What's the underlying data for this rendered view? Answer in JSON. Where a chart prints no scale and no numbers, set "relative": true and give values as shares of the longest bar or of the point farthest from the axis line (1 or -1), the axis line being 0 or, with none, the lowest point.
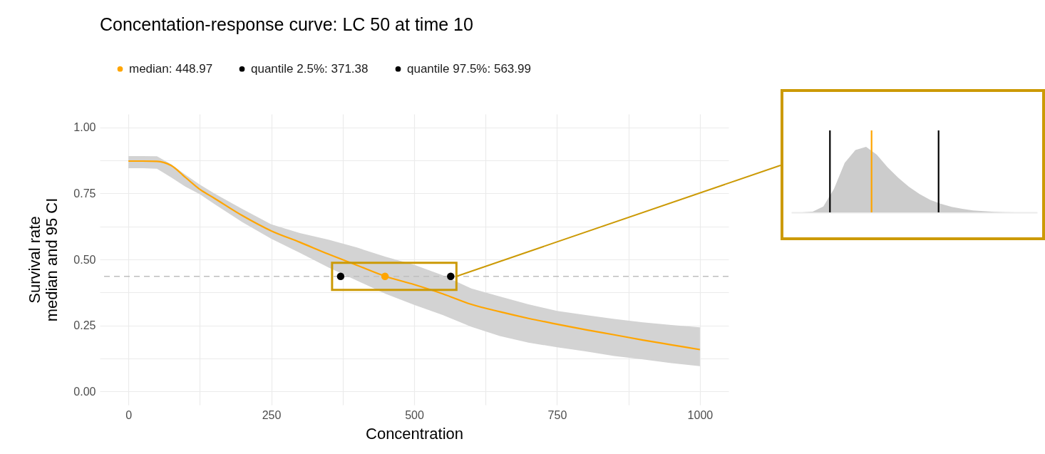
{
  "chart_data": [
    {
      "type": "line",
      "title": "Concentation-response curve: LC 50  at time 10",
      "xlabel": "Concentration",
      "ylabel": "Survival rate\nmedian and 95 CI",
      "xlim": [
        -50,
        1050
      ],
      "ylim": [
        -0.05,
        1.05
      ],
      "xticks": [
        0,
        {
          "value": 125,
          "label": null
        },
        250,
        {
          "value": 375,
          "label": null
        },
        500,
        {
          "value": 625,
          "label": null
        },
        750,
        {
          "value": 875,
          "label": null
        },
        1000
      ],
      "yticks": [
        {
          "value": 0,
          "label": "0.00"
        },
        {
          "value": 0.125,
          "label": null
        },
        {
          "value": 0.25,
          "label": "0.25"
        },
        {
          "value": 0.375,
          "label": null
        },
        {
          "value": 0.5,
          "label": "0.50"
        },
        {
          "value": 0.625,
          "label": null
        },
        {
          "value": 0.75,
          "label": "0.75"
        },
        {
          "value": 0.875,
          "label": null
        },
        {
          "value": 1,
          "label": "1.00"
        }
      ],
      "grid": true,
      "legend": "top",
      "ref_lines": [
        {
          "axis": "y",
          "value": 0.436,
          "color": "#bebebe",
          "line_style": "dashed"
        }
      ],
      "series": [
        {
          "type": "line",
          "color": "#ffa500",
          "x": [
            0,
            25,
            50,
            75,
            100,
            125,
            150,
            200,
            250,
            300,
            350,
            400,
            450,
            500,
            550,
            600,
            650,
            700,
            750,
            800,
            850,
            900,
            950,
            1000
          ],
          "values": [
            0.872,
            0.872,
            0.871,
            0.855,
            0.81,
            0.765,
            0.732,
            0.665,
            0.608,
            0.565,
            0.52,
            0.478,
            0.436,
            0.405,
            0.37,
            0.33,
            0.302,
            0.277,
            0.255,
            0.234,
            0.215,
            0.195,
            0.177,
            0.159
          ],
          "lower": [
            0.845,
            0.845,
            0.843,
            0.81,
            0.775,
            0.747,
            0.71,
            0.64,
            0.578,
            0.525,
            0.47,
            0.42,
            0.37,
            0.328,
            0.29,
            0.245,
            0.21,
            0.185,
            0.168,
            0.152,
            0.135,
            0.122,
            0.108,
            0.096
          ],
          "upper": [
            0.891,
            0.891,
            0.89,
            0.86,
            0.82,
            0.783,
            0.75,
            0.69,
            0.633,
            0.6,
            0.575,
            0.545,
            0.51,
            0.48,
            0.44,
            0.39,
            0.36,
            0.33,
            0.305,
            0.29,
            0.275,
            0.262,
            0.252,
            0.243
          ]
        },
        {
          "type": "scatter",
          "name": "median:  448.97",
          "color": "#ffa500",
          "marker": "circle",
          "x": [
            448.97
          ],
          "values": [
            0.436
          ]
        },
        {
          "type": "scatter",
          "name": "quantile 2.5%:  371.38",
          "color": "#000000",
          "marker": "circle",
          "x": [
            371.38
          ],
          "values": [
            0.436
          ]
        },
        {
          "type": "scatter",
          "name": "quantile 97.5%:  563.99",
          "color": "#000000",
          "marker": "circle",
          "x": [
            563.99
          ],
          "values": [
            0.436
          ]
        }
      ]
    },
    {
      "type": "area",
      "relative": true,
      "color": "#cccccc",
      "categories": [
        null,
        null,
        null,
        null,
        null,
        null,
        null,
        null,
        null,
        null,
        null,
        null,
        null,
        null,
        null,
        null,
        null,
        null,
        null,
        null,
        null,
        null,
        null,
        null
      ],
      "values": [
        0,
        0,
        0.01,
        0.09,
        0.36,
        0.756,
        0.95,
        1,
        0.88,
        0.69,
        0.53,
        0.39,
        0.28,
        0.19,
        0.13,
        0.084,
        0.055,
        0.03,
        0.018,
        0.008,
        0.002,
        0,
        0,
        0
      ]
    }
  ]
}
